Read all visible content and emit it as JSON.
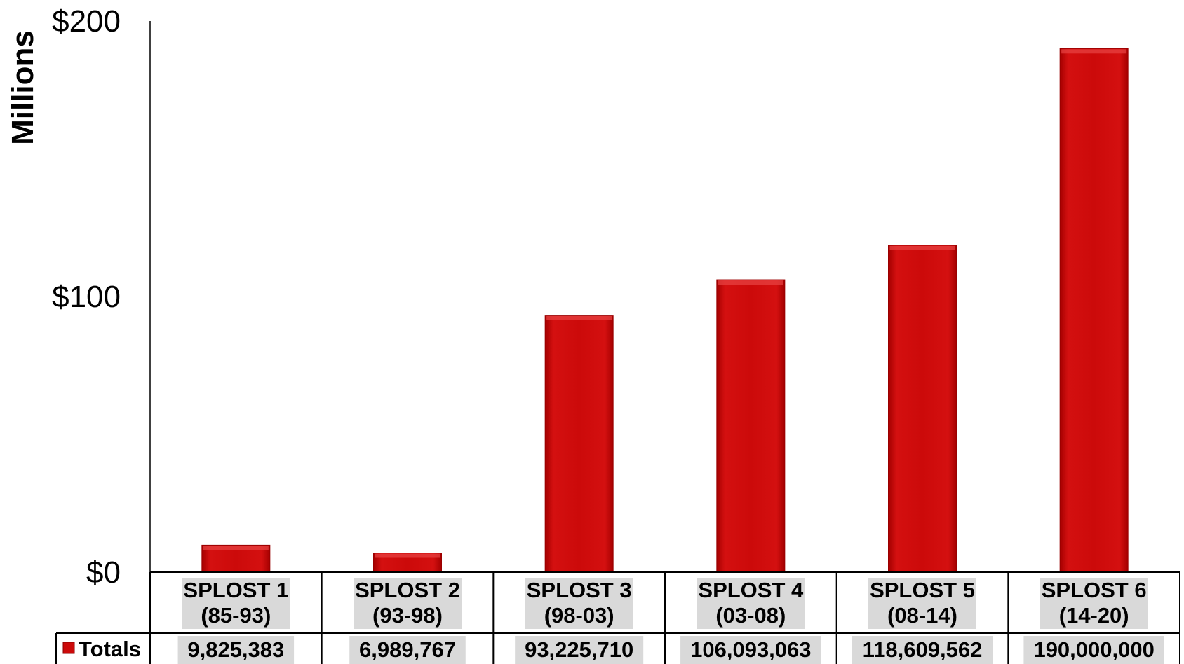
{
  "chart_data": {
    "type": "bar",
    "title": "",
    "ylabel": "Millions",
    "ylim": [
      0,
      200
    ],
    "y_ticks": [
      {
        "value": 0,
        "label": "$0"
      },
      {
        "value": 100,
        "label": "$100"
      },
      {
        "value": 200,
        "label": "$200"
      }
    ],
    "categories": [
      {
        "line1": "SPLOST 1",
        "line2": "(85-93)"
      },
      {
        "line1": "SPLOST 2",
        "line2": "(93-98)"
      },
      {
        "line1": "SPLOST 3",
        "line2": "(98-03)"
      },
      {
        "line1": "SPLOST 4",
        "line2": "(03-08)"
      },
      {
        "line1": "SPLOST 5",
        "line2": "(08-14)"
      },
      {
        "line1": "SPLOST 6",
        "line2": "(14-20)"
      }
    ],
    "series": [
      {
        "name": "Totals",
        "color": "#cc0a0a",
        "values": [
          9825383,
          6989767,
          93225710,
          106093063,
          118609562,
          190000000
        ],
        "value_labels": [
          "9,825,383",
          "6,989,767",
          "93,225,710",
          "106,093,063",
          "118,609,562",
          "190,000,000"
        ]
      }
    ],
    "data_table": true,
    "grid": false,
    "legend": "in-data-table"
  }
}
